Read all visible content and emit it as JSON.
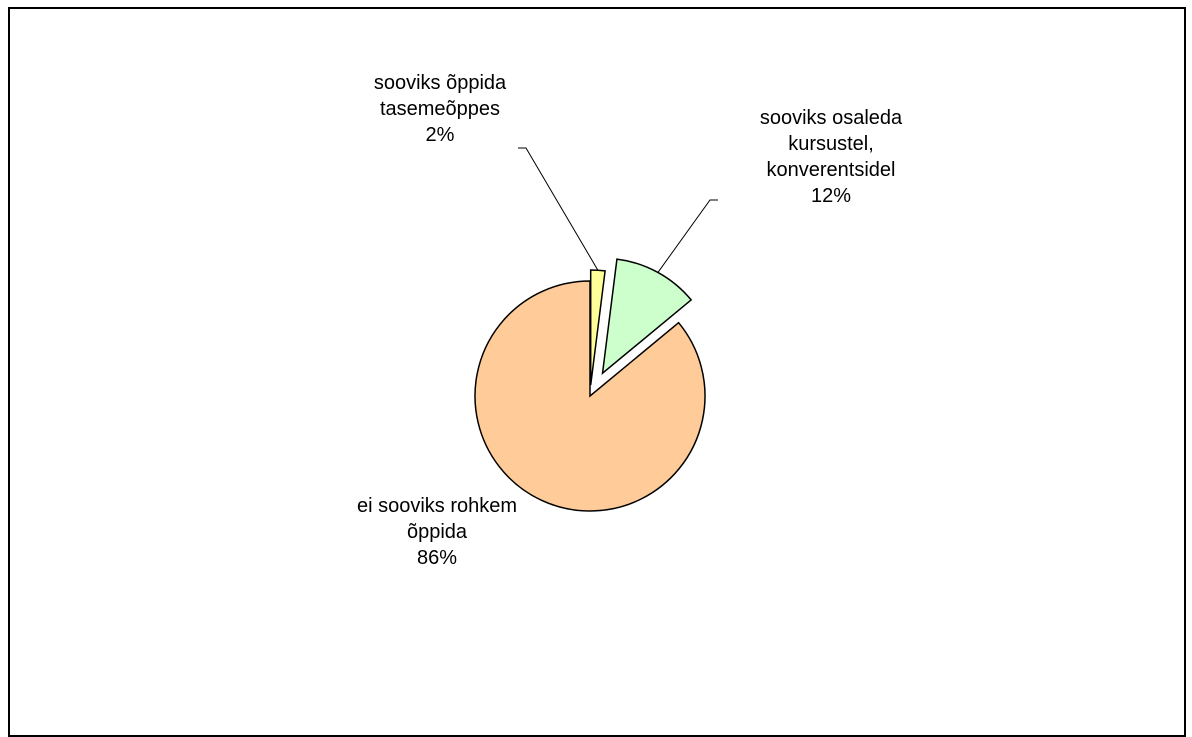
{
  "chart_data": {
    "type": "pie",
    "title": "",
    "slices": [
      {
        "name": "sooviks õppida tasemeõppes",
        "label_lines": [
          "sooviks õppida",
          "tasemeõppes",
          "2%"
        ],
        "value": 2,
        "color": "#FFFF99"
      },
      {
        "name": "sooviks osaleda kursustel, konverentsidel",
        "label_lines": [
          "sooviks osaleda",
          "kursustel,",
          "konverentsidel",
          "12%"
        ],
        "value": 12,
        "color": "#CCFFCC"
      },
      {
        "name": "ei sooviks rohkem õppida",
        "label_lines": [
          "ei sooviks rohkem",
          "õppida",
          "86%"
        ],
        "value": 86,
        "color": "#FFCC99"
      }
    ],
    "start_angle_deg": 0,
    "direction": "clockwise",
    "exploded": true,
    "legend": "none"
  }
}
